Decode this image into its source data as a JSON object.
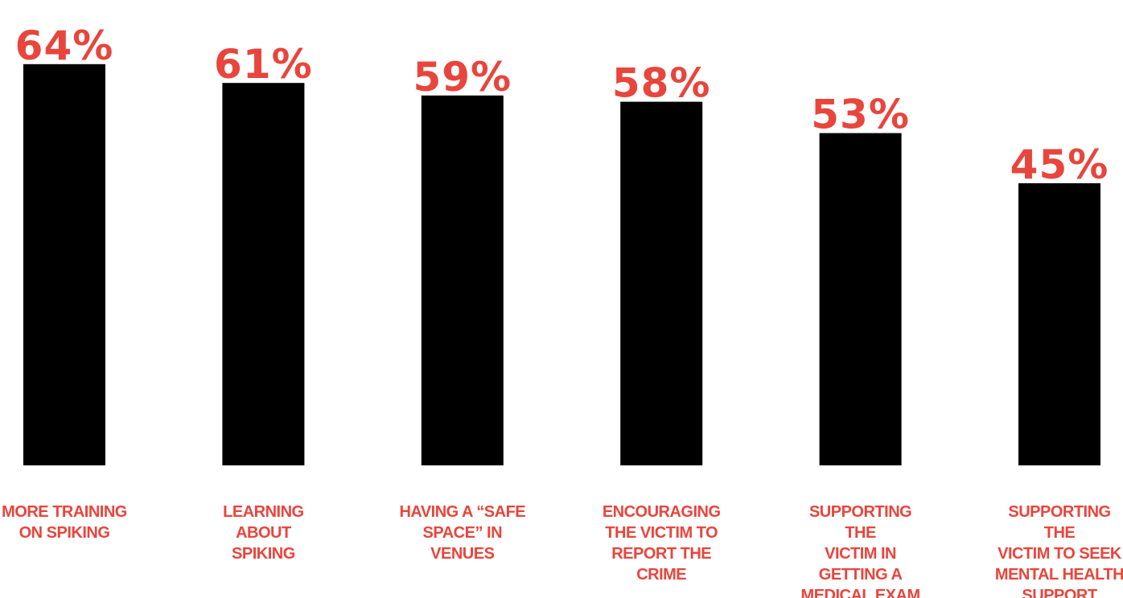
{
  "chart_data": {
    "type": "bar",
    "categories": [
      "MORE TRAINING\nON SPIKING",
      "LEARNING ABOUT\nSPIKING",
      "HAVING A “SAFE\nSPACE” IN\nVENUES",
      "ENCOURAGING\nTHE VICTIM TO\nREPORT THE\nCRIME",
      "SUPPORTING THE\nVICTIM IN\nGETTING A\nMEDICAL EXAM",
      "SUPPORTING THE\nVICTIM TO SEEK\nMENTAL HEALTH\nSUPPORT"
    ],
    "values": [
      64,
      61,
      59,
      58,
      53,
      45
    ],
    "value_labels": [
      "64%",
      "61%",
      "59%",
      "58%",
      "53%",
      "45%"
    ],
    "title": "",
    "xlabel": "",
    "ylabel": "",
    "ylim": [
      0,
      100
    ],
    "grid": false,
    "legend": "none",
    "colors": {
      "bar": "#000000",
      "label": "#e8453c"
    }
  }
}
